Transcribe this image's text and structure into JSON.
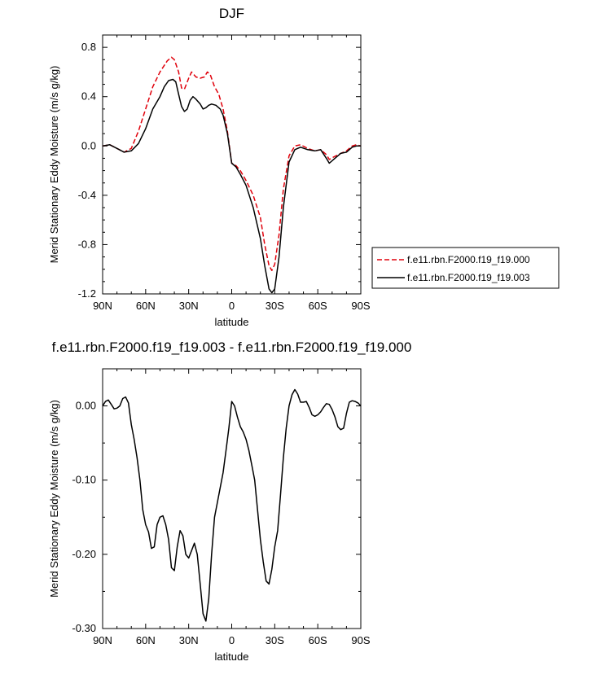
{
  "chart_data": [
    {
      "type": "line",
      "title": "DJF",
      "xlabel": "latitude",
      "ylabel": "Merid Stationary Eddy Moisture (m/s g/kg)",
      "xlim": [
        90,
        -90
      ],
      "ylim": [
        -1.2,
        0.9
      ],
      "x_ticks": [
        {
          "value": 90,
          "label": "90N"
        },
        {
          "value": 60,
          "label": "60N"
        },
        {
          "value": 30,
          "label": "30N"
        },
        {
          "value": 0,
          "label": "0"
        },
        {
          "value": -30,
          "label": "30S"
        },
        {
          "value": -60,
          "label": "60S"
        },
        {
          "value": -90,
          "label": "90S"
        }
      ],
      "y_ticks": [
        {
          "value": 0.8,
          "label": "0.8"
        },
        {
          "value": 0.4,
          "label": "0.4"
        },
        {
          "value": 0.0,
          "label": "0.0"
        },
        {
          "value": -0.4,
          "label": "-0.4"
        },
        {
          "value": -0.8,
          "label": "-0.8"
        },
        {
          "value": -1.2,
          "label": "-1.2"
        }
      ],
      "legend_position": "right",
      "series": [
        {
          "name": "f.e11.rbn.F2000.f19_f19.000",
          "color": "#e0000b",
          "dash": "dashed",
          "points": [
            [
              90,
              0.0
            ],
            [
              85,
              0.01
            ],
            [
              80,
              -0.02
            ],
            [
              75,
              -0.05
            ],
            [
              70,
              -0.02
            ],
            [
              65,
              0.12
            ],
            [
              60,
              0.3
            ],
            [
              55,
              0.48
            ],
            [
              50,
              0.6
            ],
            [
              45,
              0.69
            ],
            [
              42,
              0.72
            ],
            [
              40,
              0.7
            ],
            [
              37,
              0.6
            ],
            [
              35,
              0.47
            ],
            [
              33,
              0.46
            ],
            [
              30,
              0.55
            ],
            [
              28,
              0.6
            ],
            [
              25,
              0.56
            ],
            [
              22,
              0.55
            ],
            [
              19,
              0.56
            ],
            [
              17,
              0.6
            ],
            [
              15,
              0.58
            ],
            [
              12,
              0.48
            ],
            [
              9,
              0.42
            ],
            [
              6,
              0.3
            ],
            [
              3,
              0.12
            ],
            [
              0,
              -0.14
            ],
            [
              -3,
              -0.16
            ],
            [
              -6,
              -0.2
            ],
            [
              -10,
              -0.28
            ],
            [
              -15,
              -0.4
            ],
            [
              -20,
              -0.58
            ],
            [
              -23,
              -0.8
            ],
            [
              -26,
              -0.97
            ],
            [
              -28,
              -1.01
            ],
            [
              -30,
              -0.96
            ],
            [
              -33,
              -0.72
            ],
            [
              -36,
              -0.35
            ],
            [
              -40,
              -0.08
            ],
            [
              -44,
              0.0
            ],
            [
              -48,
              0.01
            ],
            [
              -53,
              -0.02
            ],
            [
              -58,
              -0.04
            ],
            [
              -62,
              -0.03
            ],
            [
              -66,
              -0.07
            ],
            [
              -68,
              -0.11
            ],
            [
              -71,
              -0.09
            ],
            [
              -76,
              -0.06
            ],
            [
              -80,
              -0.04
            ],
            [
              -84,
              0.0
            ],
            [
              -87,
              0.01
            ],
            [
              -90,
              0.0
            ]
          ]
        },
        {
          "name": "f.e11.rbn.F2000.f19_f19.003",
          "color": "#000000",
          "dash": "solid",
          "points": [
            [
              90,
              0.0
            ],
            [
              85,
              0.01
            ],
            [
              80,
              -0.02
            ],
            [
              75,
              -0.05
            ],
            [
              70,
              -0.04
            ],
            [
              65,
              0.02
            ],
            [
              60,
              0.14
            ],
            [
              55,
              0.3
            ],
            [
              50,
              0.4
            ],
            [
              47,
              0.48
            ],
            [
              44,
              0.53
            ],
            [
              41,
              0.54
            ],
            [
              39,
              0.52
            ],
            [
              37,
              0.42
            ],
            [
              35,
              0.32
            ],
            [
              33,
              0.28
            ],
            [
              31,
              0.3
            ],
            [
              29,
              0.37
            ],
            [
              27,
              0.4
            ],
            [
              25,
              0.38
            ],
            [
              22,
              0.34
            ],
            [
              20,
              0.3
            ],
            [
              18,
              0.31
            ],
            [
              16,
              0.33
            ],
            [
              14,
              0.34
            ],
            [
              11,
              0.33
            ],
            [
              8,
              0.3
            ],
            [
              6,
              0.25
            ],
            [
              3,
              0.1
            ],
            [
              0,
              -0.14
            ],
            [
              -3,
              -0.17
            ],
            [
              -6,
              -0.23
            ],
            [
              -10,
              -0.32
            ],
            [
              -15,
              -0.5
            ],
            [
              -20,
              -0.75
            ],
            [
              -23,
              -0.97
            ],
            [
              -26,
              -1.16
            ],
            [
              -28,
              -1.19
            ],
            [
              -30,
              -1.16
            ],
            [
              -33,
              -0.9
            ],
            [
              -36,
              -0.5
            ],
            [
              -40,
              -0.13
            ],
            [
              -44,
              -0.03
            ],
            [
              -48,
              -0.01
            ],
            [
              -53,
              -0.03
            ],
            [
              -58,
              -0.04
            ],
            [
              -62,
              -0.03
            ],
            [
              -66,
              -0.1
            ],
            [
              -68,
              -0.14
            ],
            [
              -71,
              -0.11
            ],
            [
              -76,
              -0.06
            ],
            [
              -80,
              -0.05
            ],
            [
              -84,
              -0.01
            ],
            [
              -87,
              0.0
            ],
            [
              -90,
              0.0
            ]
          ]
        }
      ]
    },
    {
      "type": "line",
      "title": "f.e11.rbn.F2000.f19_f19.003 - f.e11.rbn.F2000.f19_f19.000",
      "xlabel": "latitude",
      "ylabel": "Merid Stationary Eddy Moisture (m/s g/kg)",
      "xlim": [
        90,
        -90
      ],
      "ylim": [
        -0.3,
        0.05
      ],
      "x_ticks": [
        {
          "value": 90,
          "label": "90N"
        },
        {
          "value": 60,
          "label": "60N"
        },
        {
          "value": 30,
          "label": "30N"
        },
        {
          "value": 0,
          "label": "0"
        },
        {
          "value": -30,
          "label": "30S"
        },
        {
          "value": -60,
          "label": "60S"
        },
        {
          "value": -90,
          "label": "90S"
        }
      ],
      "y_ticks": [
        {
          "value": 0.0,
          "label": "0.00"
        },
        {
          "value": -0.1,
          "label": "-0.10"
        },
        {
          "value": -0.2,
          "label": "-0.20"
        },
        {
          "value": -0.3,
          "label": "-0.30"
        }
      ],
      "series": [
        {
          "color": "#000000",
          "dash": "solid",
          "points": [
            [
              90,
              0.0
            ],
            [
              88,
              0.006
            ],
            [
              86,
              0.008
            ],
            [
              84,
              0.002
            ],
            [
              82,
              -0.004
            ],
            [
              80,
              -0.003
            ],
            [
              78,
              0.0
            ],
            [
              76,
              0.01
            ],
            [
              74,
              0.012
            ],
            [
              72,
              0.004
            ],
            [
              70,
              -0.025
            ],
            [
              68,
              -0.045
            ],
            [
              66,
              -0.07
            ],
            [
              64,
              -0.1
            ],
            [
              62,
              -0.14
            ],
            [
              60,
              -0.16
            ],
            [
              58,
              -0.17
            ],
            [
              56,
              -0.192
            ],
            [
              54,
              -0.19
            ],
            [
              52,
              -0.16
            ],
            [
              50,
              -0.15
            ],
            [
              48,
              -0.148
            ],
            [
              46,
              -0.16
            ],
            [
              44,
              -0.18
            ],
            [
              42,
              -0.218
            ],
            [
              40,
              -0.222
            ],
            [
              38,
              -0.19
            ],
            [
              36,
              -0.168
            ],
            [
              34,
              -0.175
            ],
            [
              32,
              -0.2
            ],
            [
              30,
              -0.205
            ],
            [
              28,
              -0.195
            ],
            [
              26,
              -0.185
            ],
            [
              24,
              -0.2
            ],
            [
              22,
              -0.24
            ],
            [
              20,
              -0.28
            ],
            [
              18,
              -0.29
            ],
            [
              16,
              -0.26
            ],
            [
              14,
              -0.2
            ],
            [
              12,
              -0.15
            ],
            [
              10,
              -0.13
            ],
            [
              8,
              -0.11
            ],
            [
              6,
              -0.09
            ],
            [
              4,
              -0.06
            ],
            [
              2,
              -0.03
            ],
            [
              0,
              0.006
            ],
            [
              -2,
              0.0
            ],
            [
              -4,
              -0.015
            ],
            [
              -6,
              -0.028
            ],
            [
              -8,
              -0.035
            ],
            [
              -10,
              -0.045
            ],
            [
              -12,
              -0.06
            ],
            [
              -14,
              -0.08
            ],
            [
              -16,
              -0.1
            ],
            [
              -18,
              -0.14
            ],
            [
              -20,
              -0.18
            ],
            [
              -22,
              -0.21
            ],
            [
              -24,
              -0.236
            ],
            [
              -26,
              -0.24
            ],
            [
              -28,
              -0.22
            ],
            [
              -30,
              -0.19
            ],
            [
              -32,
              -0.168
            ],
            [
              -34,
              -0.12
            ],
            [
              -36,
              -0.07
            ],
            [
              -38,
              -0.03
            ],
            [
              -40,
              0.0
            ],
            [
              -42,
              0.015
            ],
            [
              -44,
              0.022
            ],
            [
              -46,
              0.016
            ],
            [
              -48,
              0.005
            ],
            [
              -50,
              0.005
            ],
            [
              -52,
              0.006
            ],
            [
              -54,
              -0.002
            ],
            [
              -56,
              -0.012
            ],
            [
              -58,
              -0.014
            ],
            [
              -60,
              -0.012
            ],
            [
              -62,
              -0.008
            ],
            [
              -64,
              -0.002
            ],
            [
              -66,
              0.003
            ],
            [
              -68,
              0.002
            ],
            [
              -70,
              -0.005
            ],
            [
              -72,
              -0.015
            ],
            [
              -74,
              -0.028
            ],
            [
              -76,
              -0.032
            ],
            [
              -78,
              -0.03
            ],
            [
              -80,
              -0.01
            ],
            [
              -82,
              0.005
            ],
            [
              -84,
              0.007
            ],
            [
              -86,
              0.006
            ],
            [
              -88,
              0.004
            ],
            [
              -90,
              0.0
            ]
          ]
        }
      ]
    }
  ]
}
